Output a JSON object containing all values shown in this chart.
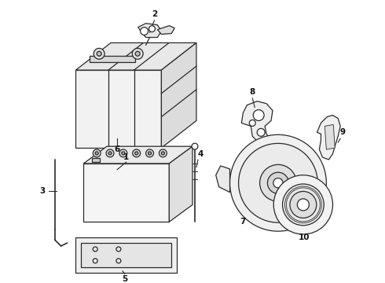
{
  "background_color": "#ffffff",
  "line_color": "#2a2a2a",
  "fig_width": 4.9,
  "fig_height": 3.6,
  "dpi": 100,
  "label_fontsize": 7.5
}
